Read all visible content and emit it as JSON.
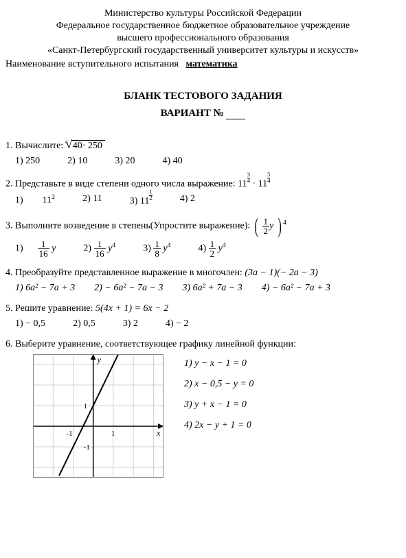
{
  "header": {
    "line1": "Министерство культуры Российской Федерации",
    "line2": "Федеральное государственное бюджетное образовательное учреждение",
    "line3": "высшего профессионального образования",
    "line4": "«Санкт-Петербургский государственный университет культуры и искусств»",
    "exam_label": "Наименование вступительного испытания",
    "exam_name": "математика"
  },
  "title": {
    "main": "БЛАНК ТЕСТОВОГО ЗАДАНИЯ",
    "variant": "ВАРИАНТ №"
  },
  "q1": {
    "label": "1. Вычислите:",
    "root_index": "4",
    "radicand": "40· 250",
    "opts": [
      "1)  250",
      "2) 10",
      "3) 20",
      "4) 40"
    ]
  },
  "q2": {
    "label": "2. Представьте в виде степени одного числа выражение:",
    "base1": "11",
    "e1n": "3",
    "e1d": "4",
    "dot": "·",
    "base2": "11",
    "e2n": "5",
    "e2d": "4",
    "opt1_pre": "1)",
    "opt1_base": "11",
    "opt1_sup": "2",
    "opt2": "2) 11",
    "opt3_pre": "3)",
    "opt3_base": "11",
    "opt3_en": "1",
    "opt3_ed": "2",
    "opt4": "4)  2"
  },
  "q3": {
    "label": "3. Выполните возведение в степень(Упростите выражение):",
    "inner_num": "1",
    "inner_den": "2",
    "inner_y": "y",
    "outer_exp": "4",
    "opts": {
      "o1": {
        "pre": "1)",
        "num": "1",
        "den": "16",
        "tail": "y"
      },
      "o2": {
        "pre": "2)",
        "num": "1",
        "den": "16",
        "tail": "y",
        "sup": "4"
      },
      "o3": {
        "pre": "3)",
        "num": "1",
        "den": "8",
        "tail": "y",
        "sup": "4"
      },
      "o4": {
        "pre": "4)",
        "num": "1",
        "den": "2",
        "tail": "y",
        "sup": "4"
      }
    }
  },
  "q4": {
    "label": "4. Преобразуйте представленное выражение в многочлен:",
    "expr": "(3a − 1)(− 2a − 3)",
    "opts": [
      "1)  6a² − 7a + 3",
      "2) − 6a² − 7a − 3",
      "3) 6a² + 7a − 3",
      "4) − 6a² − 7a + 3"
    ]
  },
  "q5": {
    "label": "5. Решите уравнение:",
    "expr": "5(4x + 1) = 6x − 2",
    "opts": [
      "1)  − 0,5",
      "2)  0,5",
      "3)  2",
      "4)  − 2"
    ]
  },
  "q6": {
    "label": "6. Выберите уравнение,  соответствующее графику линейной функции:",
    "opts": [
      "1)   y − x − 1 = 0",
      "2)   x − 0,5 − y = 0",
      "3)  y + x − 1 = 0",
      "4)  2x − y + 1 = 0"
    ],
    "graph": {
      "width": 190,
      "height": 180,
      "bg": "#ffffff",
      "grid_color": "#c0c0c0",
      "axis_color": "#000000",
      "line_color": "#000000",
      "x_range": [
        -3,
        3.5
      ],
      "y_range": [
        -2.5,
        3.5
      ],
      "x_ticks": [
        -1,
        1
      ],
      "y_ticks": [
        -1,
        1
      ],
      "x_label": "x",
      "y_label": "y",
      "line_points": [
        [
          -1.7,
          -2.4
        ],
        [
          1.3,
          3.6
        ]
      ]
    }
  }
}
